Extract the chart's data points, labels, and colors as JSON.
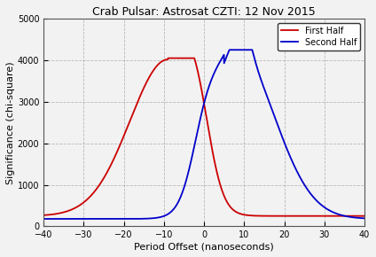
{
  "title": "Crab Pulsar: Astrosat CZTI: 12 Nov 2015",
  "xlabel": "Period Offset (nanoseconds)",
  "ylabel": "Significance (chi-square)",
  "xlim": [
    -40,
    40
  ],
  "ylim": [
    0,
    5000
  ],
  "xticks": [
    -40,
    -30,
    -20,
    -10,
    0,
    10,
    20,
    30,
    40
  ],
  "yticks": [
    0,
    1000,
    2000,
    3000,
    4000,
    5000
  ],
  "bg_color": "#f2f2f2",
  "grid_color": "#aaaaaa",
  "red_color": "#cc0000",
  "blue_color": "#0000cc",
  "red_label": "First Half",
  "blue_label": "Second Half"
}
